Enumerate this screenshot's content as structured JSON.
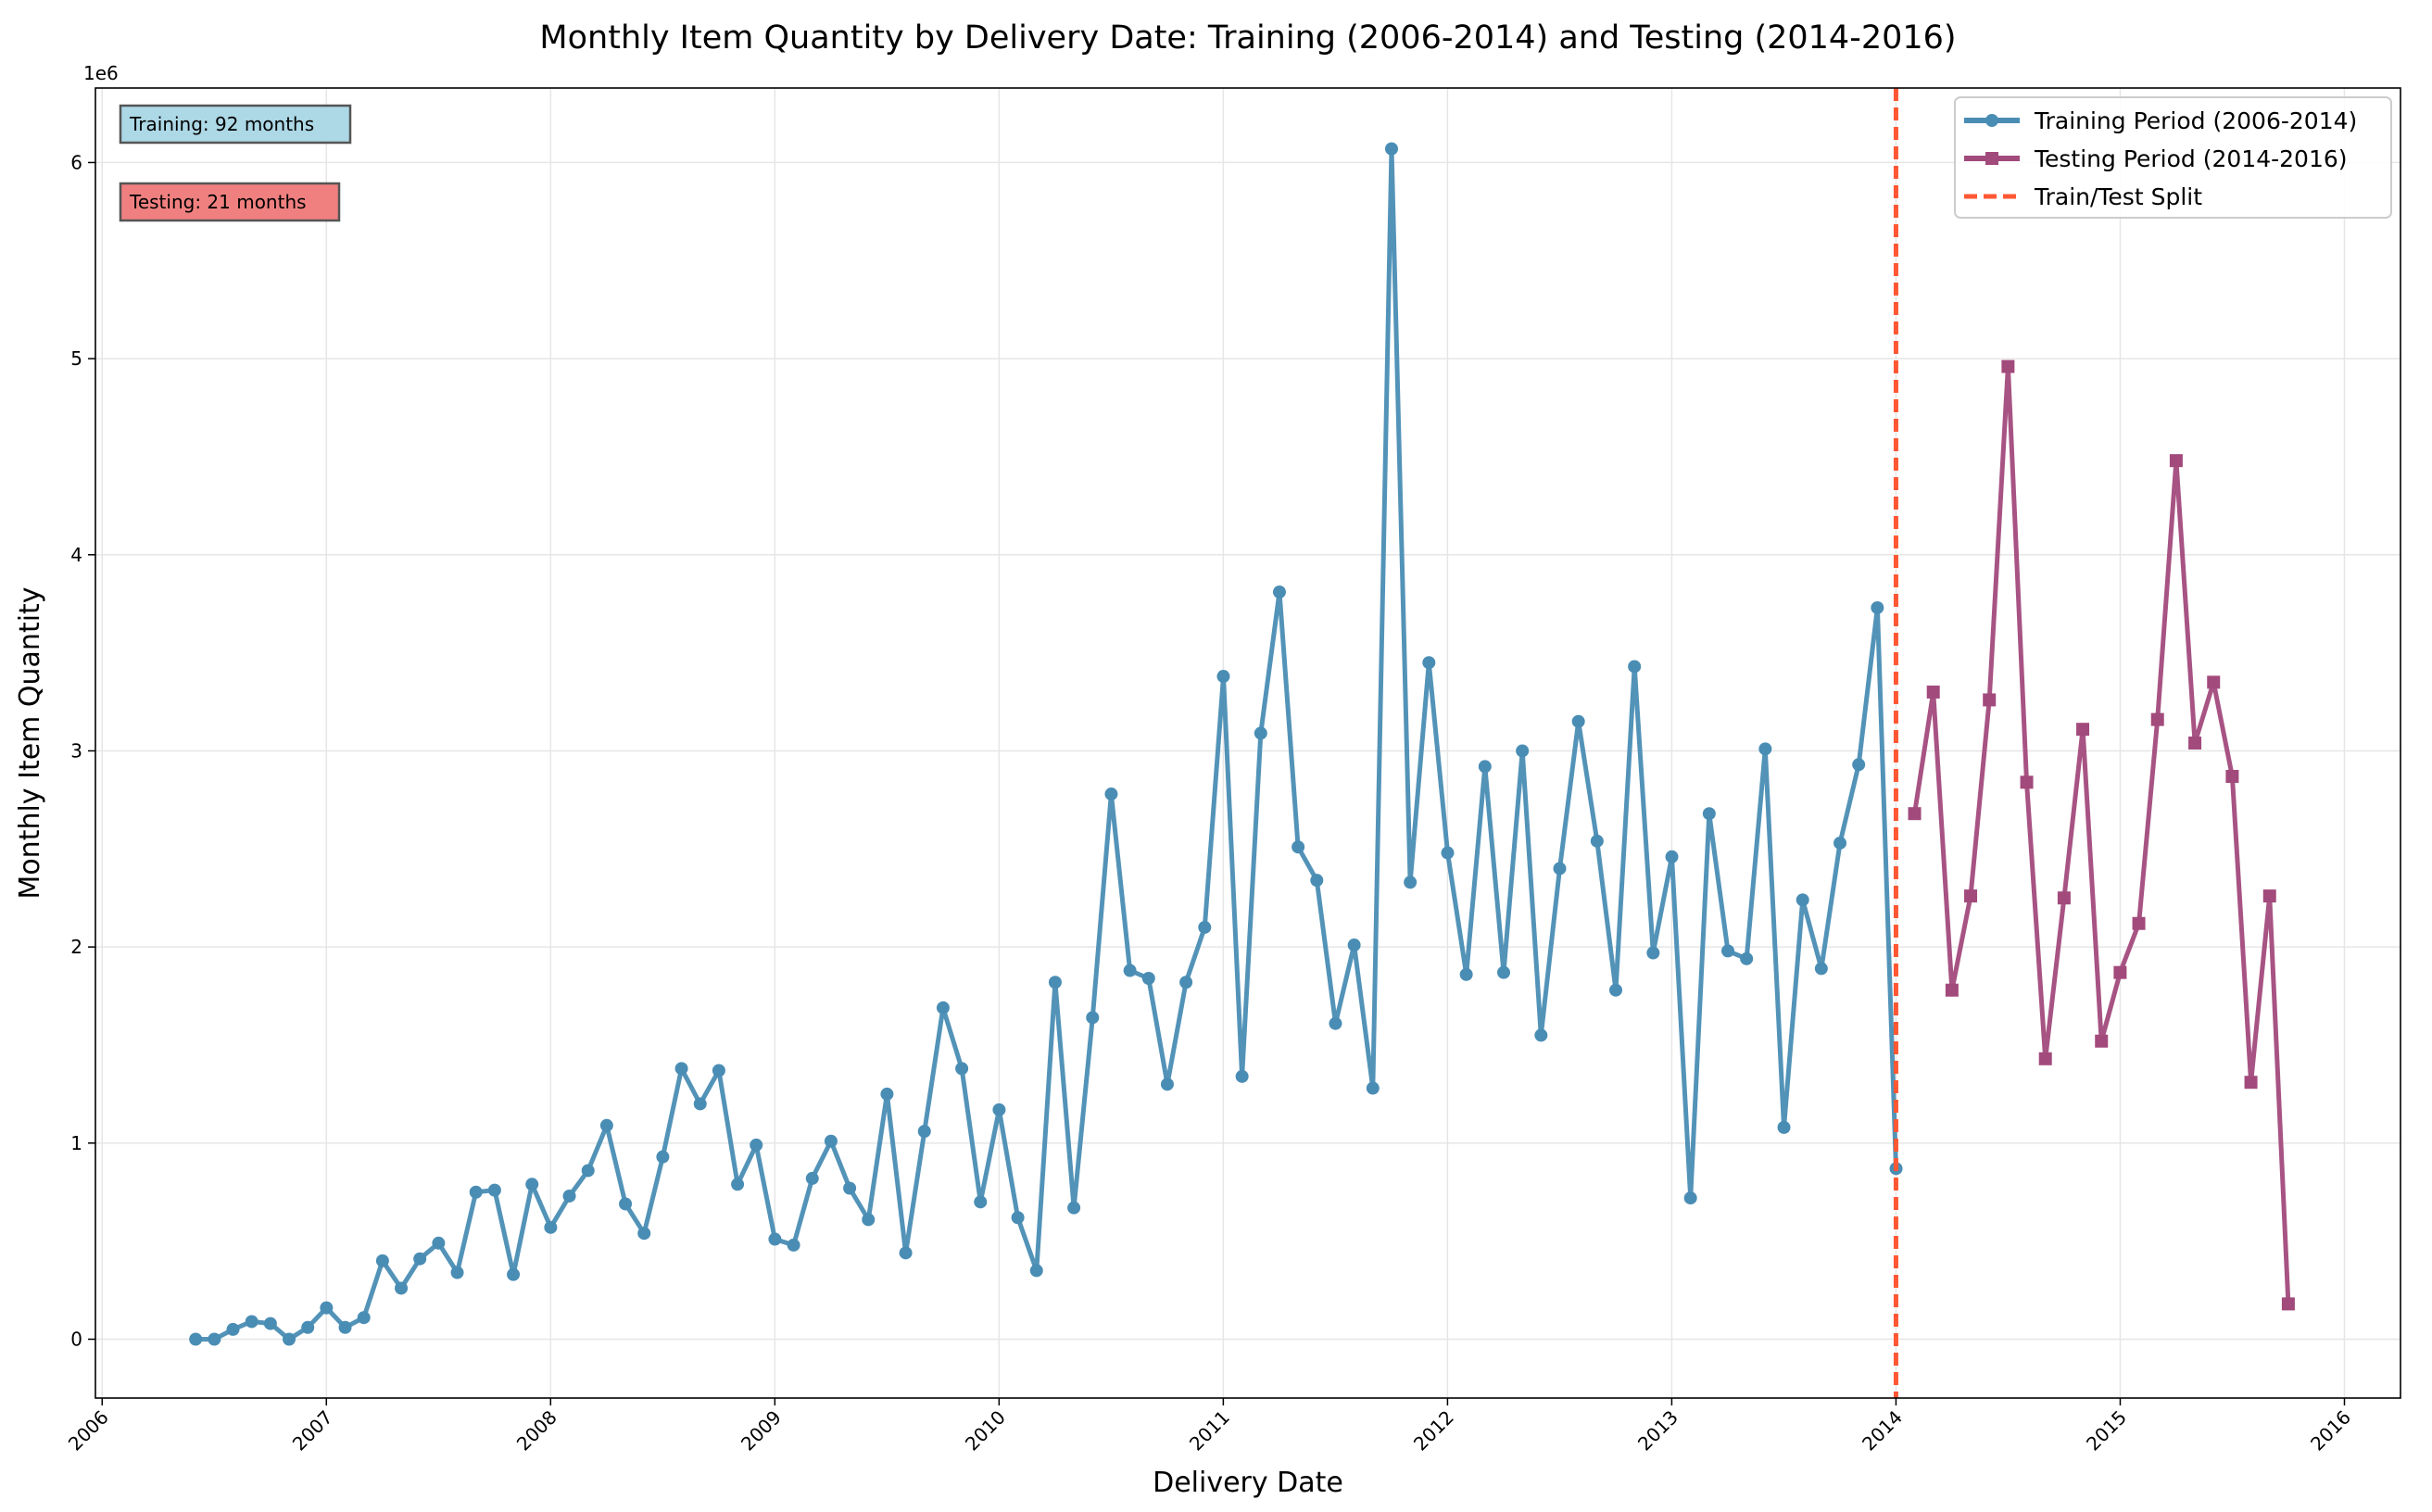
{
  "chart_data": {
    "type": "line",
    "title": "Monthly Item Quantity by Delivery Date: Training (2006-2014) and Testing (2014-2016)",
    "xlabel": "Delivery Date",
    "ylabel": "Monthly Item Quantity",
    "y_multiplier_label": "1e6",
    "xlim": [
      2005.97,
      2016.25
    ],
    "ylim": [
      -0.3,
      6.38
    ],
    "x_ticks": [
      2006,
      2007,
      2008,
      2009,
      2010,
      2011,
      2012,
      2013,
      2014,
      2015,
      2016
    ],
    "x_tick_labels": [
      "2006",
      "2007",
      "2008",
      "2009",
      "2010",
      "2011",
      "2012",
      "2013",
      "2014",
      "2015",
      "2016"
    ],
    "y_ticks": [
      0,
      1,
      2,
      3,
      4,
      5,
      6
    ],
    "y_tick_labels": [
      "0",
      "1",
      "2",
      "3",
      "4",
      "5",
      "6"
    ],
    "grid": true,
    "legend_position": "top-right",
    "split_x": 2014.0,
    "split_label": "Train/Test Split",
    "series": [
      {
        "name": "Training Period (2006-2014)",
        "color": "#4a8db4",
        "marker": "circle",
        "start_year": 2006.417,
        "values": [
          0.0,
          0.0,
          0.05,
          0.09,
          0.08,
          0.0,
          0.06,
          0.16,
          0.06,
          0.11,
          0.4,
          0.26,
          0.41,
          0.49,
          0.34,
          0.75,
          0.76,
          0.33,
          0.79,
          0.57,
          0.73,
          0.86,
          1.09,
          0.69,
          0.54,
          0.93,
          1.38,
          1.2,
          1.37,
          0.79,
          0.99,
          0.51,
          0.48,
          0.82,
          1.01,
          0.77,
          0.61,
          1.25,
          0.44,
          1.06,
          1.69,
          1.38,
          0.7,
          1.17,
          0.62,
          0.35,
          1.82,
          0.67,
          1.64,
          2.78,
          1.88,
          1.84,
          1.3,
          1.82,
          2.1,
          3.38,
          1.34,
          3.09,
          3.81,
          2.51,
          2.34,
          1.61,
          2.01,
          1.28,
          6.07,
          2.33,
          3.45,
          2.48,
          1.86,
          2.92,
          1.87,
          3.0,
          1.55,
          2.4,
          3.15,
          2.54,
          1.78,
          3.43,
          1.97,
          2.46,
          0.72,
          2.68,
          1.98,
          1.94,
          3.01,
          1.08,
          2.24,
          1.89,
          2.53,
          2.93,
          3.73,
          0.87
        ]
      },
      {
        "name": "Testing Period (2014-2016)",
        "color": "#a24a7c",
        "marker": "square",
        "start_year": 2014.083,
        "values": [
          2.68,
          3.3,
          1.78,
          2.26,
          3.26,
          4.96,
          2.84,
          1.43,
          2.25,
          3.11,
          1.52,
          1.87,
          2.12,
          3.16,
          4.48,
          3.04,
          3.35,
          2.87,
          1.31,
          2.26,
          0.18
        ]
      }
    ],
    "annotations": [
      {
        "text": "Training: 92 months",
        "color": "#add8e6"
      },
      {
        "text": "Testing: 21 months",
        "color": "#f08080"
      }
    ]
  }
}
